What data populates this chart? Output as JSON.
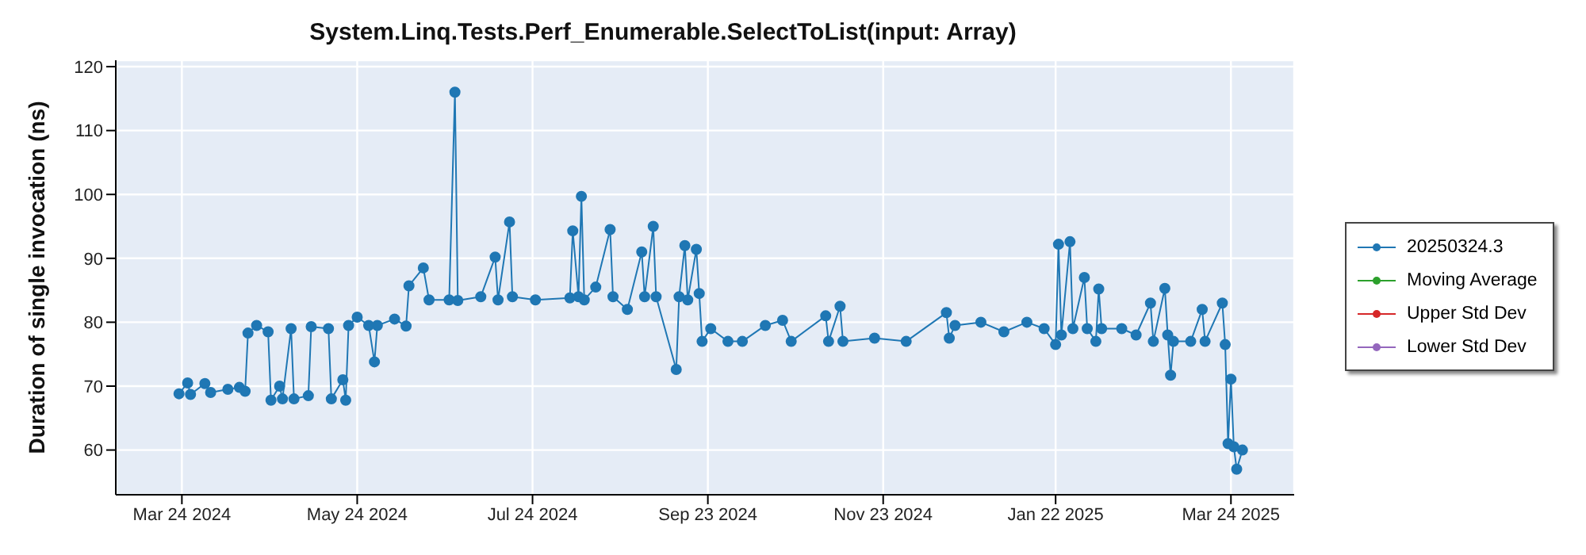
{
  "chart_data": {
    "type": "line",
    "title": "System.Linq.Tests.Perf_Enumerable.SelectToList(input: Array)",
    "ylabel": "Duration of single invocation (ns)",
    "xlim": [
      "2024-03-01",
      "2025-04-15"
    ],
    "xticks": [
      {
        "value": "2024-03-24",
        "label": "Mar 24 2024"
      },
      {
        "value": "2024-05-24",
        "label": "May 24 2024"
      },
      {
        "value": "2024-07-24",
        "label": "Jul 24 2024"
      },
      {
        "value": "2024-09-23",
        "label": "Sep 23 2024"
      },
      {
        "value": "2024-11-23",
        "label": "Nov 23 2024"
      },
      {
        "value": "2025-01-22",
        "label": "Jan 22 2025"
      },
      {
        "value": "2025-03-24",
        "label": "Mar 24 2025"
      }
    ],
    "ylim": [
      53,
      121
    ],
    "yticks": [
      60,
      70,
      80,
      90,
      100,
      110,
      120
    ],
    "grid": true,
    "legend": "right",
    "marker": "circle",
    "line_style": "solid",
    "series": [
      {
        "name": "20250324.3",
        "color": "#1f77b4",
        "x": [
          "2024-03-23",
          "2024-03-26",
          "2024-03-27",
          "2024-04-01",
          "2024-04-03",
          "2024-04-09",
          "2024-04-13",
          "2024-04-15",
          "2024-04-16",
          "2024-04-19",
          "2024-04-23",
          "2024-04-24",
          "2024-04-27",
          "2024-04-28",
          "2024-05-01",
          "2024-05-02",
          "2024-05-07",
          "2024-05-08",
          "2024-05-14",
          "2024-05-15",
          "2024-05-19",
          "2024-05-20",
          "2024-05-21",
          "2024-05-24",
          "2024-05-28",
          "2024-05-30",
          "2024-05-31",
          "2024-06-06",
          "2024-06-10",
          "2024-06-11",
          "2024-06-16",
          "2024-06-18",
          "2024-06-25",
          "2024-06-27",
          "2024-06-28",
          "2024-07-06",
          "2024-07-11",
          "2024-07-12",
          "2024-07-16",
          "2024-07-17",
          "2024-07-25",
          "2024-08-06",
          "2024-08-07",
          "2024-08-09",
          "2024-08-10",
          "2024-08-11",
          "2024-08-15",
          "2024-08-20",
          "2024-08-21",
          "2024-08-26",
          "2024-08-31",
          "2024-09-01",
          "2024-09-04",
          "2024-09-05",
          "2024-09-12",
          "2024-09-13",
          "2024-09-15",
          "2024-09-16",
          "2024-09-19",
          "2024-09-20",
          "2024-09-21",
          "2024-09-24",
          "2024-09-30",
          "2024-10-05",
          "2024-10-13",
          "2024-10-19",
          "2024-10-22",
          "2024-11-03",
          "2024-11-04",
          "2024-11-08",
          "2024-11-09",
          "2024-11-20",
          "2024-12-01",
          "2024-12-15",
          "2024-12-16",
          "2024-12-18",
          "2024-12-27",
          "2025-01-04",
          "2025-01-12",
          "2025-01-18",
          "2025-01-22",
          "2025-01-23",
          "2025-01-24",
          "2025-01-27",
          "2025-01-28",
          "2025-02-01",
          "2025-02-02",
          "2025-02-05",
          "2025-02-06",
          "2025-02-07",
          "2025-02-14",
          "2025-02-19",
          "2025-02-24",
          "2025-02-25",
          "2025-03-01",
          "2025-03-02",
          "2025-03-03",
          "2025-03-04",
          "2025-03-10",
          "2025-03-14",
          "2025-03-15",
          "2025-03-21",
          "2025-03-22",
          "2025-03-23",
          "2025-03-24",
          "2025-03-25",
          "2025-03-26",
          "2025-03-28"
        ],
        "values": [
          68.8,
          70.5,
          68.7,
          70.4,
          69,
          69.5,
          69.8,
          69.2,
          78.3,
          79.5,
          78.5,
          67.8,
          70,
          68,
          79,
          68,
          68.5,
          79.3,
          79,
          68,
          71,
          67.8,
          79.5,
          80.8,
          79.5,
          73.8,
          79.5,
          80.5,
          79.4,
          85.7,
          88.5,
          83.5,
          83.5,
          116,
          83.4,
          84,
          90.2,
          83.5,
          95.7,
          84,
          83.5,
          83.8,
          94.3,
          84,
          99.7,
          83.5,
          85.5,
          94.5,
          84,
          82,
          91,
          84,
          95,
          84,
          72.6,
          84,
          92,
          83.5,
          91.4,
          84.5,
          77,
          79,
          77,
          77,
          79.5,
          80.3,
          77,
          81,
          77,
          82.5,
          77,
          77.5,
          77,
          81.5,
          77.5,
          79.5,
          80,
          78.5,
          80,
          79,
          76.5,
          92.2,
          78,
          92.6,
          79,
          87,
          79,
          77,
          85.2,
          79,
          79,
          78,
          83,
          77,
          85.3,
          78,
          71.7,
          77,
          77,
          82,
          77,
          83,
          76.5,
          61,
          71.1,
          60.5,
          57,
          60
        ]
      },
      {
        "name": "Moving Average",
        "color": "#2ca02c"
      },
      {
        "name": "Upper Std Dev",
        "color": "#d62728"
      },
      {
        "name": "Lower Std Dev",
        "color": "#9467bd"
      }
    ]
  }
}
